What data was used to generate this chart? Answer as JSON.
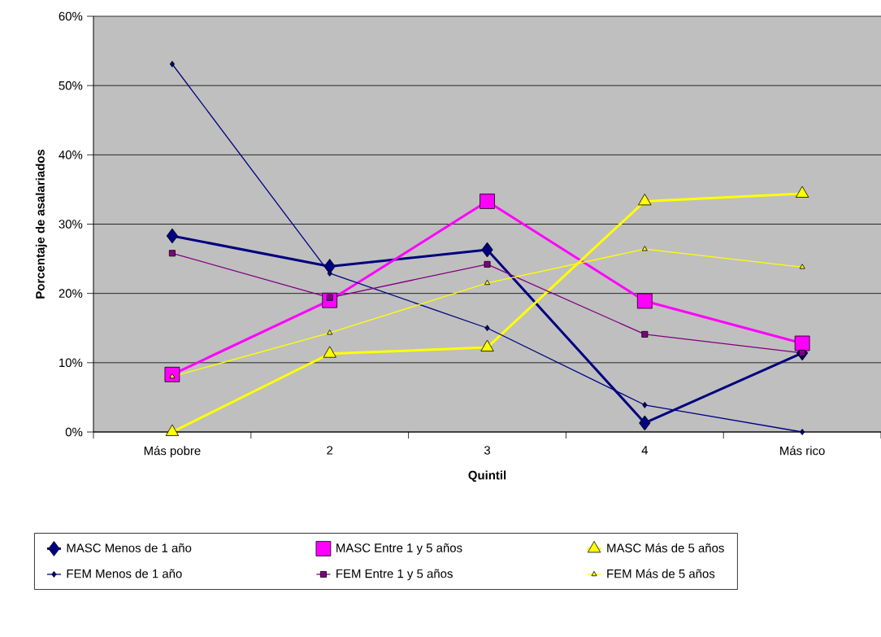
{
  "chart_data": {
    "type": "line",
    "xlabel": "Quintil",
    "ylabel": "Porcentaje de asalariados",
    "categories": [
      "Más pobre",
      "2",
      "3",
      "4",
      "Más rico"
    ],
    "series": [
      {
        "name": "MASC Menos de 1 año",
        "color": "#000080",
        "marker": "diamond",
        "values": [
          28.3,
          23.9,
          26.3,
          1.3,
          11.4
        ]
      },
      {
        "name": "MASC Entre 1 y 5 años",
        "color": "#ff00ff",
        "marker": "square",
        "values": [
          8.3,
          19.0,
          33.3,
          18.9,
          12.8
        ]
      },
      {
        "name": "MASC Más de 5 años",
        "color": "#ffff00",
        "marker": "triangle",
        "values": [
          0,
          11.3,
          12.2,
          33.3,
          34.4
        ]
      },
      {
        "name": "FEM Menos de 1 año",
        "color": "#000080",
        "marker": "diamond",
        "values": [
          53.1,
          22.9,
          15.0,
          3.9,
          0
        ]
      },
      {
        "name": "FEM Entre 1 y 5 años",
        "color": "#800080",
        "marker": "square",
        "values": [
          25.8,
          19.4,
          24.2,
          14.1,
          11.4
        ]
      },
      {
        "name": "FEM Más de 5 años",
        "color": "#ffff00",
        "marker": "triangle",
        "values": [
          8.0,
          14.3,
          21.5,
          26.4,
          23.8
        ]
      }
    ],
    "ylim": [
      0,
      60
    ],
    "yticks": [
      {
        "value": 0,
        "label": "0%"
      },
      {
        "value": 10,
        "label": "10%"
      },
      {
        "value": 20,
        "label": "20%"
      },
      {
        "value": 30,
        "label": "30%"
      },
      {
        "value": 40,
        "label": "40%"
      },
      {
        "value": 50,
        "label": "50%"
      },
      {
        "value": 60,
        "label": "60%"
      }
    ],
    "grid": "y",
    "legend": "bottom"
  }
}
